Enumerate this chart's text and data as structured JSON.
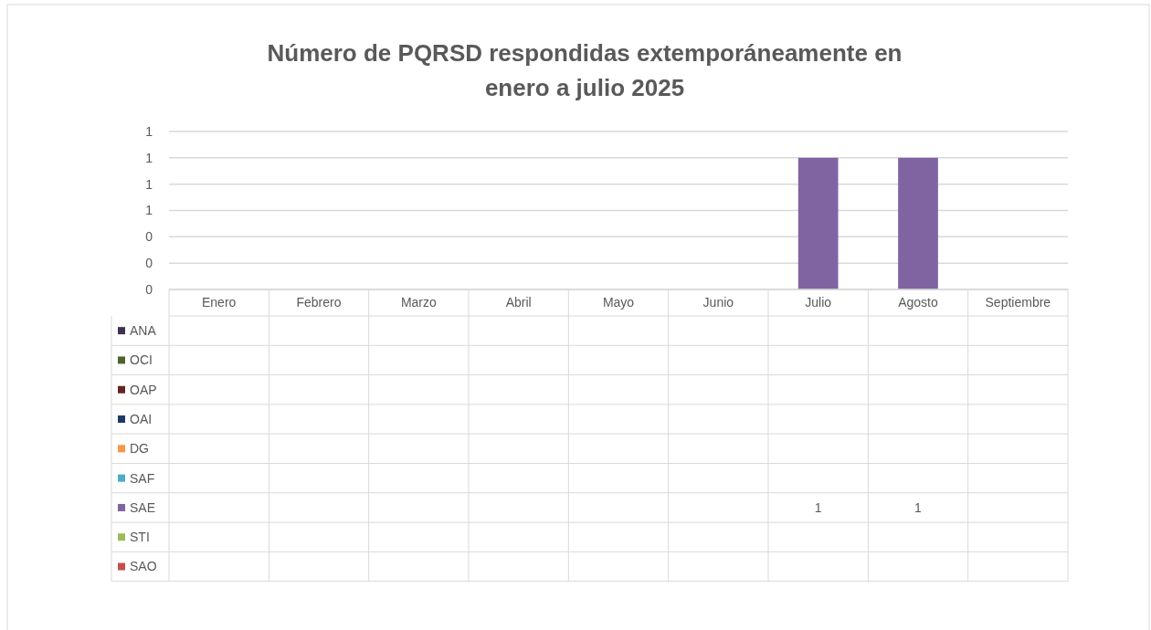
{
  "chart_data": {
    "type": "bar",
    "title": "Número de PQRSD respondidas extemporáneamente en enero a julio 2025",
    "categories": [
      "Enero",
      "Febrero",
      "Marzo",
      "Abril",
      "Mayo",
      "Junio",
      "Julio",
      "Agosto",
      "Septiembre"
    ],
    "stacked": true,
    "data_labels": true,
    "grid": "y",
    "legend": "bottom",
    "ylim": [
      0,
      1.2
    ],
    "yticks": [
      {
        "value": 0,
        "label": "0"
      },
      {
        "value": 0.2,
        "label": "0"
      },
      {
        "value": 0.4,
        "label": "0"
      },
      {
        "value": 0.6,
        "label": "1"
      },
      {
        "value": 0.8,
        "label": "1"
      },
      {
        "value": 1,
        "label": "1"
      },
      {
        "value": 1.2,
        "label": "1"
      }
    ],
    "series": [
      {
        "name": "ANA",
        "color": "#3f3151",
        "values": [
          null,
          null,
          null,
          null,
          null,
          null,
          null,
          null,
          null
        ]
      },
      {
        "name": "OCI",
        "color": "#4f6228",
        "values": [
          null,
          null,
          null,
          null,
          null,
          null,
          null,
          null,
          null
        ]
      },
      {
        "name": "OAP",
        "color": "#632523",
        "values": [
          null,
          null,
          null,
          null,
          null,
          null,
          null,
          null,
          null
        ]
      },
      {
        "name": "OAI",
        "color": "#1f3864",
        "values": [
          null,
          null,
          null,
          null,
          null,
          null,
          null,
          null,
          null
        ]
      },
      {
        "name": "DG",
        "color": "#f79646",
        "values": [
          null,
          null,
          null,
          null,
          null,
          null,
          null,
          null,
          null
        ]
      },
      {
        "name": "SAF",
        "color": "#4bacc6",
        "values": [
          null,
          null,
          null,
          null,
          null,
          null,
          null,
          null,
          null
        ]
      },
      {
        "name": "SAE",
        "color": "#8064a2",
        "values": [
          null,
          null,
          null,
          null,
          null,
          null,
          1,
          1,
          null
        ]
      },
      {
        "name": "STI",
        "color": "#9bbb59",
        "values": [
          null,
          null,
          null,
          null,
          null,
          null,
          null,
          null,
          null
        ]
      },
      {
        "name": "SAO",
        "color": "#c0504d",
        "values": [
          null,
          null,
          null,
          null,
          null,
          null,
          null,
          null,
          null
        ]
      }
    ]
  }
}
